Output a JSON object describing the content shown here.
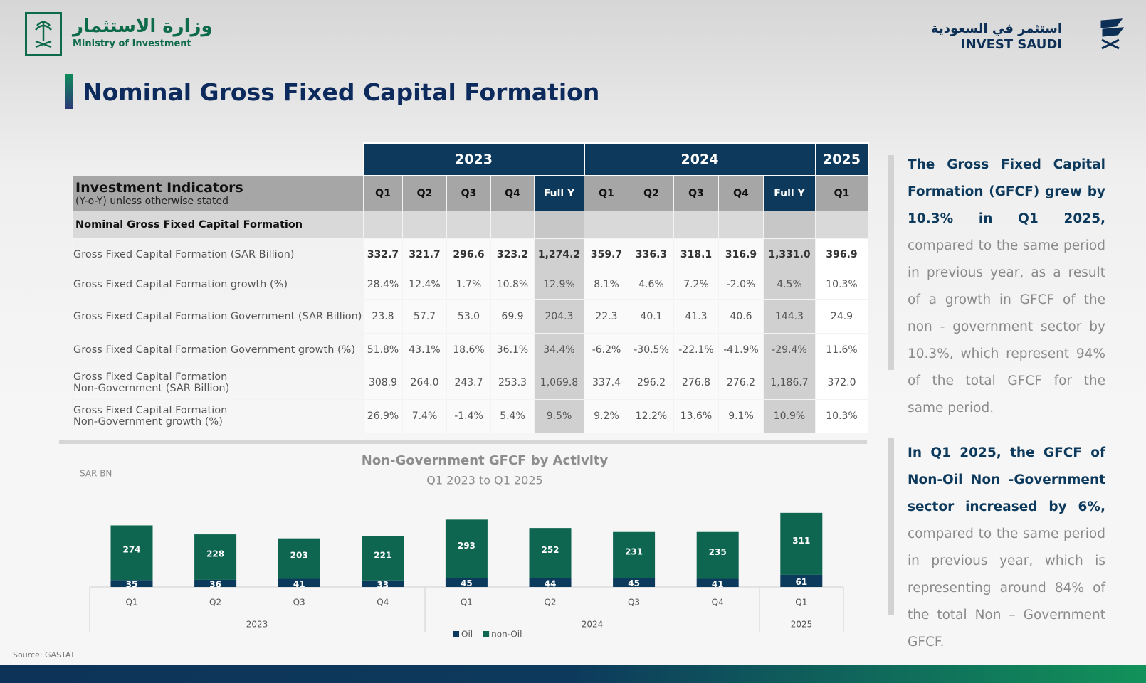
{
  "header": {
    "ministry_ar": "وزارة الاستثمار",
    "ministry_en": "Ministry of Investment",
    "brand_ar": "استثمر في السعودية",
    "brand_en": "INVEST SAUDI",
    "title": "Nominal Gross Fixed Capital Formation"
  },
  "table": {
    "years": [
      "2023",
      "2024",
      "2025"
    ],
    "header_title": "Investment Indicators",
    "header_subtitle": "(Y-o-Y) unless otherwise stated",
    "columns": [
      "Q1",
      "Q2",
      "Q3",
      "Q4",
      "Full Y",
      "Q1",
      "Q2",
      "Q3",
      "Q4",
      "Full Y",
      "Q1"
    ],
    "section": "Nominal Gross Fixed Capital Formation",
    "rows": [
      {
        "label": "Gross Fixed Capital Formation (SAR Billion)",
        "values": [
          "332.7",
          "321.7",
          "296.6",
          "323.2",
          "1,274.2",
          "359.7",
          "336.3",
          "318.1",
          "316.9",
          "1,331.0",
          "396.9"
        ]
      },
      {
        "label": "Gross Fixed Capital Formation growth (%)",
        "values": [
          "28.4%",
          "12.4%",
          "1.7%",
          "10.8%",
          "12.9%",
          "8.1%",
          "4.6%",
          "7.2%",
          "-2.0%",
          "4.5%",
          "10.3%"
        ]
      },
      {
        "label": "Gross Fixed Capital Formation Government (SAR Billion)",
        "values": [
          "23.8",
          "57.7",
          "53.0",
          "69.9",
          "204.3",
          "22.3",
          "40.1",
          "41.3",
          "40.6",
          "144.3",
          "24.9"
        ]
      },
      {
        "label": "Gross Fixed Capital Formation Government growth (%)",
        "values": [
          "51.8%",
          "43.1%",
          "18.6%",
          "36.1%",
          "34.4%",
          "-6.2%",
          "-30.5%",
          "-22.1%",
          "-41.9%",
          "-29.4%",
          "11.6%"
        ]
      },
      {
        "label": "Gross Fixed Capital Formation Non-Government (SAR Billion)",
        "values": [
          "308.9",
          "264.0",
          "243.7",
          "253.3",
          "1,069.8",
          "337.4",
          "296.2",
          "276.8",
          "276.2",
          "1,186.7",
          "372.0"
        ]
      },
      {
        "label": "Gross Fixed Capital Formation Non-Government growth (%)",
        "values": [
          "26.9%",
          "7.4%",
          "-1.4%",
          "5.4%",
          "9.5%",
          "9.2%",
          "12.2%",
          "13.6%",
          "9.1%",
          "10.9%",
          "10.3%"
        ]
      }
    ]
  },
  "notes": [
    {
      "bold": "The Gross Fixed Capital Formation (GFCF) grew by 10.3% in Q1 2025,",
      "text": " compared to the same period in previous year, as a result of a growth in GFCF of the non - government sector by 10.3%, which represent 94% of the total GFCF for the same period."
    },
    {
      "bold": "In Q1 2025, the GFCF of Non-Oil Non -Government sector increased by 6%,",
      "text": " compared to the same period in previous year, which is representing around 84% of the total Non – Government GFCF."
    }
  ],
  "chart_data": {
    "type": "stacked_bar",
    "title": "Non-Government GFCF by Activity",
    "subtitle": "Q1 2023 to Q1 2025",
    "unit": "SAR BN",
    "categories": [
      "Q1",
      "Q2",
      "Q3",
      "Q4",
      "Q1",
      "Q2",
      "Q3",
      "Q4",
      "Q1"
    ],
    "category_groups": [
      "2023",
      "2024",
      "2025"
    ],
    "series": [
      {
        "name": "Oil",
        "color": "#0b3a5c",
        "values": [
          35,
          36,
          41,
          33,
          45,
          44,
          45,
          41,
          61
        ]
      },
      {
        "name": "non-Oil",
        "color": "#0e6650",
        "values": [
          274,
          228,
          203,
          221,
          293,
          252,
          231,
          235,
          311
        ]
      }
    ]
  },
  "source": "Source: GASTAT"
}
